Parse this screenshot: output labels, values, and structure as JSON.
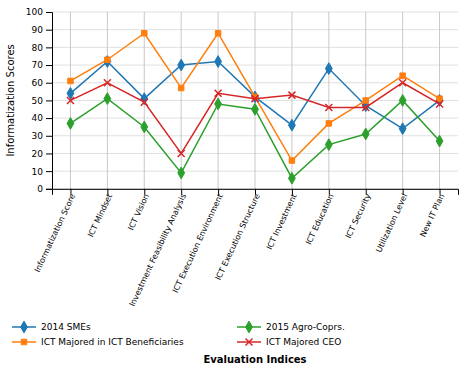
{
  "chart_data": {
    "type": "line",
    "categories": [
      "Informatization Score",
      "ICT Mindset",
      "ICT Vision",
      "Investment Feasibility Analysis",
      "ICT Execution Environment",
      "ICT Execution Structure",
      "ICT Investment",
      "ICT Education",
      "ICT Security",
      "Utilization Level",
      "New IT Plan"
    ],
    "series": [
      {
        "name": "2014 SMEs",
        "marker": "diamond",
        "values": [
          54,
          72,
          51,
          70,
          72,
          52,
          36,
          68,
          47,
          34,
          50
        ]
      },
      {
        "name": "ICT Majored in ICT Beneficiaries",
        "marker": "square",
        "values": [
          61,
          73,
          88,
          57,
          88,
          52,
          16,
          37,
          50,
          64,
          51
        ]
      },
      {
        "name": "2015 Agro-Coprs.",
        "marker": "diamond",
        "values": [
          37,
          51,
          35,
          9,
          48,
          45,
          6,
          25,
          31,
          50,
          27
        ]
      },
      {
        "name": "ICT Majored CEO",
        "marker": "x",
        "values": [
          50,
          60,
          49,
          20,
          54,
          51,
          53,
          46,
          46,
          60,
          48
        ]
      }
    ],
    "xlabel": "Evaluation Indices",
    "ylabel": "Informatization Scores",
    "ylim": [
      0,
      100
    ],
    "yticks": [
      0,
      10,
      20,
      30,
      40,
      50,
      60,
      70,
      80,
      90,
      100
    ],
    "grid": true,
    "legend": "bottom"
  }
}
